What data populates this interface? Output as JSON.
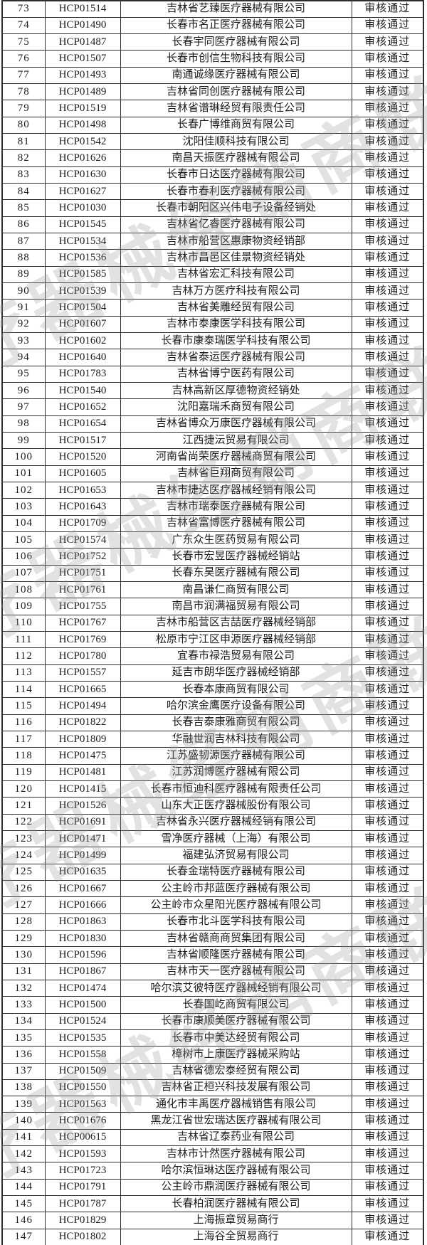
{
  "watermark": {
    "text": "医疗器械经销商联盟"
  },
  "status_color": "#1c1c1c",
  "table": {
    "status_label": "审核通过",
    "rows": [
      {
        "no": "73",
        "code": "HCP01514",
        "company": "吉林省艺臻医疗器械有限公司",
        "status": "审核通过"
      },
      {
        "no": "74",
        "code": "HCP01490",
        "company": "长春市名正医疗器械有限公司",
        "status": "审核通过"
      },
      {
        "no": "75",
        "code": "HCP01487",
        "company": "长春宇同医疗器械有限公司",
        "status": "审核通过"
      },
      {
        "no": "76",
        "code": "HCP01507",
        "company": "长春市创信生物科技有限公司",
        "status": "审核通过"
      },
      {
        "no": "77",
        "code": "HCP01493",
        "company": "南通诚缘医疗器械有限公司",
        "status": "审核通过"
      },
      {
        "no": "78",
        "code": "HCP01489",
        "company": "吉林省同创医疗器械有限公司",
        "status": "审核通过"
      },
      {
        "no": "79",
        "code": "HCP01519",
        "company": "吉林省谱琳经贸有限责任公司",
        "status": "审核通过"
      },
      {
        "no": "80",
        "code": "HCP01498",
        "company": "长春广博维商贸有限公司",
        "status": "审核通过"
      },
      {
        "no": "81",
        "code": "HCP01542",
        "company": "沈阳佳顺科技有限公司",
        "status": "审核通过"
      },
      {
        "no": "82",
        "code": "HCP01626",
        "company": "南昌天振医疗器械有限公司",
        "status": "审核通过"
      },
      {
        "no": "83",
        "code": "HCP01630",
        "company": "长春市日达医疗器械有限公司",
        "status": "审核通过"
      },
      {
        "no": "84",
        "code": "HCP01627",
        "company": "长春市春利医疗器械有限公司",
        "status": "审核通过"
      },
      {
        "no": "85",
        "code": "HCP01030",
        "company": "长春市朝阳区兴伟电子设备经销处",
        "status": "审核通过"
      },
      {
        "no": "86",
        "code": "HCP01545",
        "company": "吉林省亿睿医疗器械有限公司",
        "status": "审核通过"
      },
      {
        "no": "87",
        "code": "HCP01534",
        "company": "吉林市船营区惠康物资经销部",
        "status": "审核通过"
      },
      {
        "no": "88",
        "code": "HCP01536",
        "company": "吉林市昌邑区佳景物资经销处",
        "status": "审核通过"
      },
      {
        "no": "89",
        "code": "HCP01585",
        "company": "吉林省宏汇科技有限公司",
        "status": "审核通过"
      },
      {
        "no": "90",
        "code": "HCP01539",
        "company": "吉林万方医疗科技有限公司",
        "status": "审核通过"
      },
      {
        "no": "91",
        "code": "HCP01504",
        "company": "吉林省美雕经贸有限公司",
        "status": "审核通过"
      },
      {
        "no": "92",
        "code": "HCP01607",
        "company": "吉林市泰康医学科技有限公司",
        "status": "审核通过"
      },
      {
        "no": "93",
        "code": "HCP01602",
        "company": "长春市康泰瑞医学科技有限公司",
        "status": "审核通过"
      },
      {
        "no": "94",
        "code": "HCP01640",
        "company": "吉林省泰运医疗器械有限公司",
        "status": "审核通过"
      },
      {
        "no": "95",
        "code": "HCP01783",
        "company": "吉林省博宁医药有限公司",
        "status": "审核通过"
      },
      {
        "no": "96",
        "code": "HCP01540",
        "company": "吉林高新区厚德物资经销处",
        "status": "审核通过"
      },
      {
        "no": "97",
        "code": "HCP01652",
        "company": "沈阳嘉瑞禾商贸有限公司",
        "status": "审核通过"
      },
      {
        "no": "98",
        "code": "HCP01654",
        "company": "吉林省博众万康医疗器械有限公司",
        "status": "审核通过"
      },
      {
        "no": "99",
        "code": "HCP01517",
        "company": "江西捷沄贸易有限公司",
        "status": "审核通过"
      },
      {
        "no": "100",
        "code": "HCP01520",
        "company": "河南省尚荣医疗器械商贸有限公司",
        "status": "审核通过"
      },
      {
        "no": "101",
        "code": "HCP01605",
        "company": "吉林省巨翔商贸有限公司",
        "status": "审核通过"
      },
      {
        "no": "102",
        "code": "HCP01653",
        "company": "吉林市捷达医疗器械经销有限公司",
        "status": "审核通过"
      },
      {
        "no": "103",
        "code": "HCP01643",
        "company": "吉林市瑞泰医疗器械有限公司",
        "status": "审核通过"
      },
      {
        "no": "104",
        "code": "HCP01709",
        "company": "吉林省富博医疗器械有限公司",
        "status": "审核通过"
      },
      {
        "no": "105",
        "code": "HCP01574",
        "company": "广东众生医药贸易有限公司",
        "status": "审核通过"
      },
      {
        "no": "106",
        "code": "HCP01752",
        "company": "长春市宏昱医疗器械经销站",
        "status": "审核通过"
      },
      {
        "no": "107",
        "code": "HCP01751",
        "company": "长春东昊医疗器械有限公司",
        "status": "审核通过"
      },
      {
        "no": "108",
        "code": "HCP01761",
        "company": "南昌谦仁商贸有限公司",
        "status": "审核通过"
      },
      {
        "no": "109",
        "code": "HCP01755",
        "company": "南昌市润满福贸易有限公司",
        "status": "审核通过"
      },
      {
        "no": "110",
        "code": "HCP01767",
        "company": "吉林市船营区吉喆医疗器械经销部",
        "status": "审核通过"
      },
      {
        "no": "111",
        "code": "HCP01769",
        "company": "松原市宁江区申源医疗器械经销部",
        "status": "审核通过"
      },
      {
        "no": "112",
        "code": "HCP01780",
        "company": "宜春市禄浩贸易有限公司",
        "status": "审核通过"
      },
      {
        "no": "113",
        "code": "HCP01557",
        "company": "延吉市朗华医疗器械经销部",
        "status": "审核通过"
      },
      {
        "no": "114",
        "code": "HCP01665",
        "company": "长春本康商贸有限公司",
        "status": "审核通过"
      },
      {
        "no": "115",
        "code": "HCP01494",
        "company": "哈尔滨金鹰医疗设备有限公司",
        "status": "审核通过"
      },
      {
        "no": "116",
        "code": "HCP01822",
        "company": "长春吉泰康雅商贸有限公司",
        "status": "审核通过"
      },
      {
        "no": "117",
        "code": "HCP01809",
        "company": "华融世润吉林科技有限公司",
        "status": "审核通过"
      },
      {
        "no": "118",
        "code": "HCP01475",
        "company": "江苏盛韧源医疗器械有限公司",
        "status": "审核通过"
      },
      {
        "no": "119",
        "code": "HCP01481",
        "company": "江苏润博医疗器械有限公司",
        "status": "审核通过"
      },
      {
        "no": "120",
        "code": "HCP01415",
        "company": "长春市恒迪科医疗器械有限责任公司",
        "status": "审核通过"
      },
      {
        "no": "121",
        "code": "HCP01526",
        "company": "山东大正医疗器械股份有限公司",
        "status": "审核通过"
      },
      {
        "no": "122",
        "code": "HCP01691",
        "company": "吉林省永兴医疗器械经销有限公司",
        "status": "审核通过"
      },
      {
        "no": "123",
        "code": "HCP01471",
        "company": "雪净医疗器械（上海）有限公司",
        "status": "审核通过"
      },
      {
        "no": "124",
        "code": "HCP01499",
        "company": "福建弘济贸易有限公司",
        "status": "审核通过"
      },
      {
        "no": "125",
        "code": "HCP01635",
        "company": "长春金瑞特医疗器械有限公司",
        "status": "审核通过"
      },
      {
        "no": "126",
        "code": "HCP01667",
        "company": "公主岭市邦蓝医疗器械有限公司",
        "status": "审核通过"
      },
      {
        "no": "127",
        "code": "HCP01666",
        "company": "公主岭市众星阳光医疗器械有限公司",
        "status": "审核通过"
      },
      {
        "no": "128",
        "code": "HCP01863",
        "company": "长春市北斗医学科技有限公司",
        "status": "审核通过"
      },
      {
        "no": "129",
        "code": "HCP01830",
        "company": "吉林省赣商商贸集团有限公司",
        "status": "审核通过"
      },
      {
        "no": "130",
        "code": "HCP01596",
        "company": "吉林省顺隆医疗器械有限公司",
        "status": "审核通过"
      },
      {
        "no": "131",
        "code": "HCP01867",
        "company": "吉林市天一医疗器械有限公司",
        "status": "审核通过"
      },
      {
        "no": "132",
        "code": "HCP01474",
        "company": "哈尔滨艾彼特医疗器械经销有限公司",
        "status": "审核通过"
      },
      {
        "no": "133",
        "code": "HCP01500",
        "company": "长春国屹商贸有限公司",
        "status": "审核通过"
      },
      {
        "no": "134",
        "code": "HCP01524",
        "company": "长春市康顺美医疗器械有限公司",
        "status": "审核通过"
      },
      {
        "no": "135",
        "code": "HCP01535",
        "company": "长春市中美达经贸有限公司",
        "status": "审核通过"
      },
      {
        "no": "136",
        "code": "HCP01558",
        "company": "樟树市上康医疗器械采购站",
        "status": "审核通过"
      },
      {
        "no": "137",
        "code": "HCP01509",
        "company": "吉林省德宏泰经贸有限公司",
        "status": "审核通过"
      },
      {
        "no": "138",
        "code": "HCP01550",
        "company": "吉林省正桓兴科技发展有限公司",
        "status": "审核通过"
      },
      {
        "no": "139",
        "code": "HCP01563",
        "company": "通化市丰禹医疗器械销售有限公司",
        "status": "审核通过"
      },
      {
        "no": "140",
        "code": "HCP01676",
        "company": "黑龙江省世宏瑞达医疗器械有限公司",
        "status": "审核通过"
      },
      {
        "no": "141",
        "code": "HCP00615",
        "company": "吉林省辽泰药业有限公司",
        "status": "审核通过"
      },
      {
        "no": "142",
        "code": "HCP01593",
        "company": "吉林市计然医疗器械有限公司",
        "status": "审核通过"
      },
      {
        "no": "143",
        "code": "HCP01723",
        "company": "哈尔滨恒琳达医疗器械有限公司",
        "status": "审核通过"
      },
      {
        "no": "144",
        "code": "HCP01791",
        "company": "公主岭市鼎润医疗器械有限公司",
        "status": "审核通过"
      },
      {
        "no": "145",
        "code": "HCP01787",
        "company": "长春柏润医疗器械有限公司",
        "status": "审核通过"
      },
      {
        "no": "146",
        "code": "HCP01829",
        "company": "上海振章贸易商行",
        "status": "审核通过"
      },
      {
        "no": "147",
        "code": "HCP01802",
        "company": "上海谷全贸易商行",
        "status": "审核通过"
      }
    ]
  }
}
